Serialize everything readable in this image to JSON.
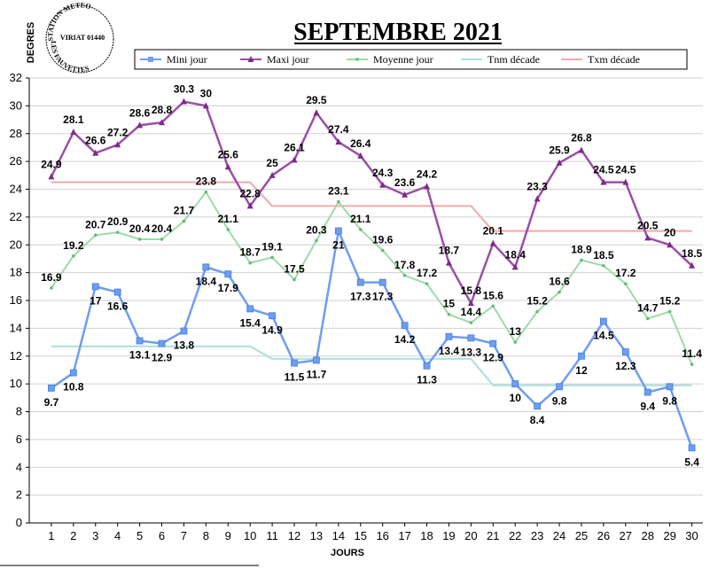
{
  "stamp": {
    "top": "STATION METEO",
    "middle": "VIRIAT 01440",
    "bottom": "LES FAUVETTES"
  },
  "chart_data": {
    "type": "line",
    "title": "SEPTEMBRE 2021",
    "xlabel": "JOURS",
    "ylabel": "DEGRES",
    "ylim": [
      0,
      32
    ],
    "yticks": [
      0,
      2,
      4,
      6,
      8,
      10,
      12,
      14,
      16,
      18,
      20,
      22,
      24,
      26,
      28,
      30,
      32
    ],
    "x": [
      1,
      2,
      3,
      4,
      5,
      6,
      7,
      8,
      9,
      10,
      11,
      12,
      13,
      14,
      15,
      16,
      17,
      18,
      19,
      20,
      21,
      22,
      23,
      24,
      25,
      26,
      27,
      28,
      29,
      30
    ],
    "grid": "horizontal",
    "legend_position": "top",
    "series": [
      {
        "name": "Mini jour",
        "color": "#6f9df0",
        "marker": "star",
        "values": [
          9.7,
          10.8,
          17,
          16.6,
          13.1,
          12.9,
          13.8,
          18.4,
          17.9,
          15.4,
          14.9,
          11.5,
          11.7,
          21,
          17.3,
          17.3,
          14.2,
          11.3,
          13.4,
          13.3,
          12.9,
          10,
          8.4,
          9.8,
          12,
          14.5,
          12.3,
          9.4,
          9.8,
          5.4
        ],
        "labels": [
          "9.7",
          "10.8",
          "17",
          "16.6",
          "13.1",
          "12.9",
          "13.8",
          "18.4",
          "17.9",
          "15.4",
          "14.9",
          "11.5",
          "11.7",
          "21",
          "17.3",
          "17.3",
          "14.2",
          "11.3",
          "13.4",
          "13.3",
          "12.9",
          "10",
          "8.4",
          "9.8",
          "12",
          "14.5",
          "12.3",
          "9.4",
          "9.8",
          "5.4"
        ]
      },
      {
        "name": "Maxi jour",
        "color": "#9b4fa6",
        "marker": "triangle",
        "values": [
          24.9,
          28.1,
          26.6,
          27.2,
          28.6,
          28.8,
          30.3,
          30,
          25.6,
          22.8,
          25,
          26.1,
          29.5,
          27.4,
          26.4,
          24.3,
          23.6,
          24.2,
          18.7,
          15.8,
          20.1,
          18.4,
          23.3,
          25.9,
          26.8,
          24.5,
          24.5,
          20.5,
          20,
          18.5
        ],
        "labels": [
          "24.9",
          "28.1",
          "26.6",
          "27.2",
          "28.6",
          "28.8",
          "30.3",
          "30",
          "25.6",
          "22.8",
          "25",
          "26.1",
          "29.5",
          "27.4",
          "26.4",
          "24.3",
          "23.6",
          "24.2",
          "18.7",
          "15.8",
          "20.1",
          "18.4",
          "23.3",
          "25.9",
          "26.8",
          "24.5",
          "24.5",
          "20.5",
          "20",
          "18.5"
        ]
      },
      {
        "name": "Moyenne jour",
        "color": "#9fd9a9",
        "marker": "dot",
        "values": [
          16.9,
          19.2,
          20.7,
          20.9,
          20.4,
          20.4,
          21.7,
          23.8,
          21.1,
          18.7,
          19.1,
          17.5,
          20.3,
          23.1,
          21.1,
          19.6,
          17.8,
          17.2,
          15,
          14.4,
          15.6,
          13,
          15.2,
          16.6,
          18.9,
          18.5,
          17.2,
          14.7,
          15.2,
          11.4
        ],
        "labels": [
          "16.9",
          "19.2",
          "20.7",
          "20.9",
          "20.4",
          "20.4",
          "21.7",
          "23.8",
          "21.1",
          "18.7",
          "19.1",
          "17.5",
          "20.3",
          "23.1",
          "21.1",
          "19.6",
          "17.8",
          "17.2",
          "15",
          "14.4",
          "15.6",
          "13",
          "15.2",
          "16.6",
          "18.9",
          "18.5",
          "17.2",
          "14.7",
          "15.2",
          "11.4"
        ]
      },
      {
        "name": "Tnm décade",
        "color": "#aadfe0",
        "marker": "none",
        "values": [
          12.7,
          12.7,
          12.7,
          12.7,
          12.7,
          12.7,
          12.7,
          12.7,
          12.7,
          12.7,
          11.8,
          11.8,
          11.8,
          11.8,
          11.8,
          11.8,
          11.8,
          11.8,
          11.8,
          11.8,
          9.9,
          9.9,
          9.9,
          9.9,
          9.9,
          9.9,
          9.9,
          9.9,
          9.9,
          9.9
        ]
      },
      {
        "name": "Txm décade",
        "color": "#f2a9aa",
        "marker": "none",
        "values": [
          24.5,
          24.5,
          24.5,
          24.5,
          24.5,
          24.5,
          24.5,
          24.5,
          24.5,
          24.5,
          22.8,
          22.8,
          22.8,
          22.8,
          22.8,
          22.8,
          22.8,
          22.8,
          22.8,
          22.8,
          21,
          21,
          21,
          21,
          21,
          21,
          21,
          21,
          21,
          21
        ]
      }
    ]
  }
}
